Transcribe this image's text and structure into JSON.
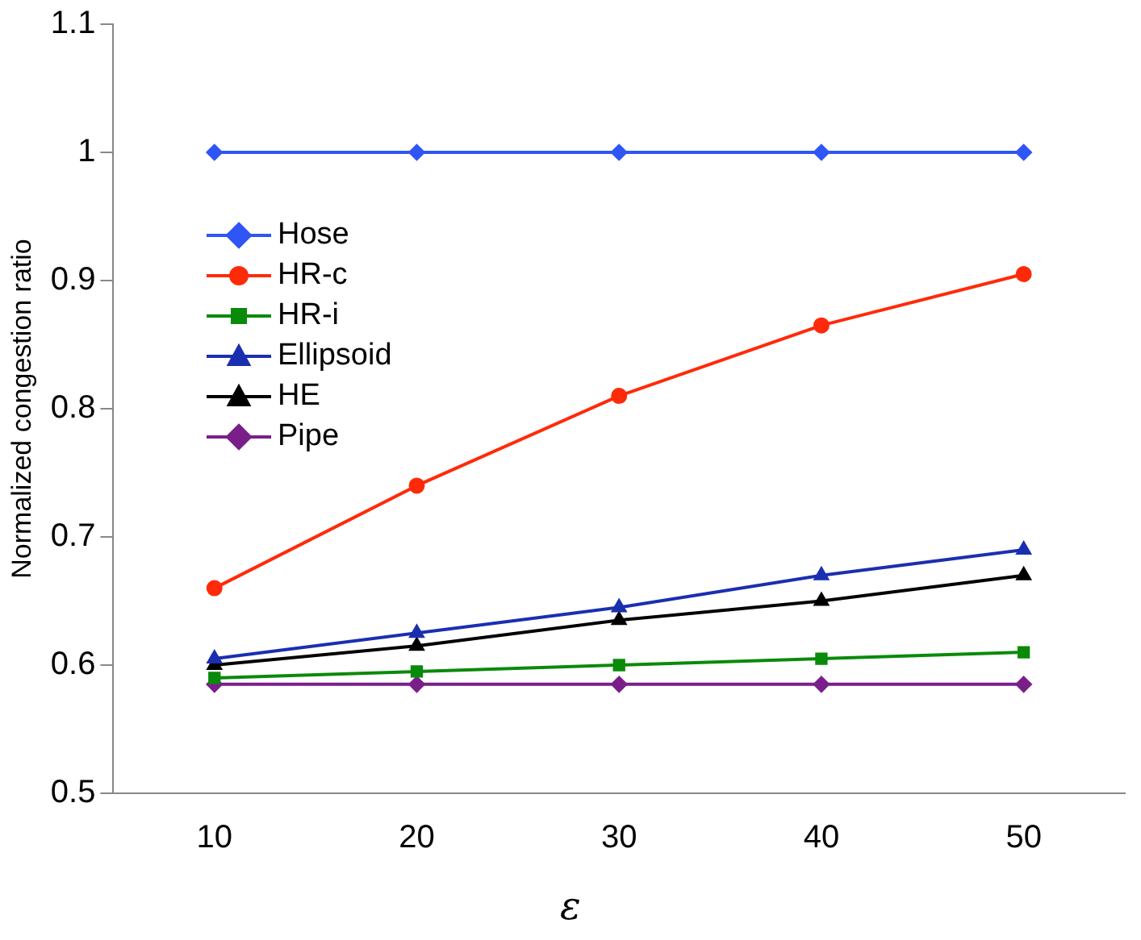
{
  "chart_data": {
    "type": "line",
    "xlabel": "ε",
    "ylabel": "Normalized congestion ratio",
    "categories": [
      "10",
      "20",
      "30",
      "40",
      "50"
    ],
    "ylim": [
      0.5,
      1.1
    ],
    "yticks": [
      0.5,
      0.6,
      0.7,
      0.8,
      0.9,
      1,
      1.1
    ],
    "grid": false,
    "legend": "left",
    "line_style": "solid",
    "series": [
      {
        "name": "Hose",
        "color": "#2f55f5",
        "marker": "diamond",
        "values": [
          1,
          1,
          1,
          1,
          1
        ]
      },
      {
        "name": "HR-c",
        "color": "#ff2a0a",
        "marker": "circle",
        "values": [
          0.66,
          0.74,
          0.81,
          0.865,
          0.905
        ]
      },
      {
        "name": "HR-i",
        "color": "#0a8a0a",
        "marker": "square",
        "values": [
          0.59,
          0.595,
          0.6,
          0.605,
          0.61
        ]
      },
      {
        "name": "Ellipsoid",
        "color": "#1a2fb0",
        "marker": "triangle",
        "values": [
          0.605,
          0.625,
          0.645,
          0.67,
          0.69
        ]
      },
      {
        "name": "HE",
        "color": "#000000",
        "marker": "triangle",
        "values": [
          0.6,
          0.615,
          0.635,
          0.65,
          0.67
        ]
      },
      {
        "name": "Pipe",
        "color": "#7a1f8a",
        "marker": "diamond",
        "values": [
          0.585,
          0.585,
          0.585,
          0.585,
          0.585
        ]
      }
    ]
  }
}
